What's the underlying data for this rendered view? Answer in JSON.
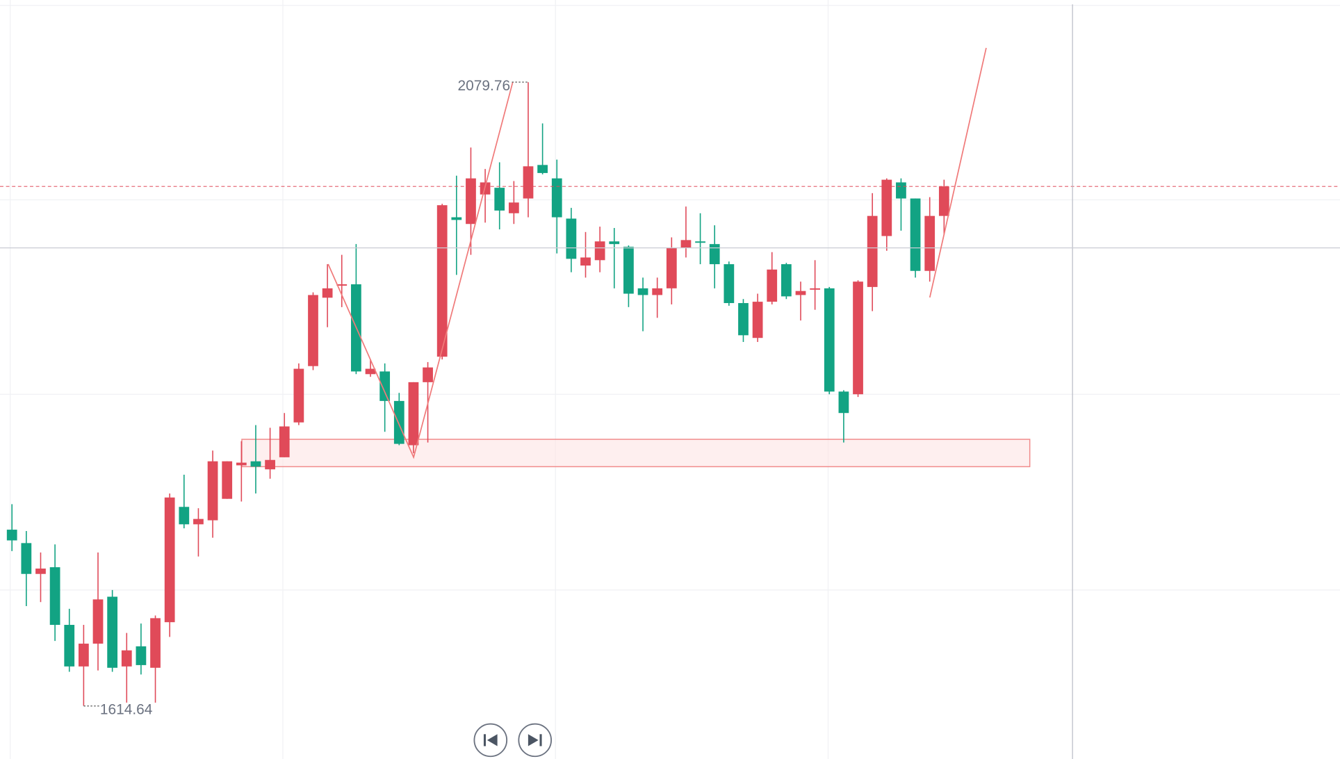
{
  "chart_data": {
    "type": "candlestick",
    "open": [
      1746,
      1736,
      1713,
      1718,
      1675,
      1644,
      1661,
      1696,
      1644,
      1659,
      1643,
      1677,
      1763,
      1750,
      1753,
      1769,
      1794,
      1797,
      1791,
      1800,
      1826,
      1868,
      1919,
      1928,
      1929,
      1862,
      1864,
      1842,
      1809,
      1856,
      1875,
      1979,
      1974,
      1996,
      2001,
      1982,
      1993,
      2018,
      2008,
      1978,
      1943,
      1947,
      1961,
      1957,
      1926,
      1921,
      1926,
      1956,
      1961,
      1959,
      1944,
      1915,
      1889,
      1916,
      1944,
      1921,
      1925,
      1926,
      1849,
      1847,
      1927,
      1965,
      2005,
      1993,
      1939,
      1980
    ],
    "high": [
      1765,
      1745,
      1729,
      1735,
      1687,
      1675,
      1729,
      1701,
      1669,
      1676,
      1682,
      1773,
      1787,
      1762,
      1805,
      1797,
      1812,
      1824,
      1822,
      1833,
      1870,
      1923,
      1944,
      1951,
      1959,
      1873,
      1870,
      1848,
      1856,
      1871,
      1989,
      2010,
      2031,
      2015,
      2020,
      2006,
      2079.76,
      2049,
      2022,
      1986,
      1968,
      1972,
      1971,
      1958,
      1934,
      1934,
      1964,
      1987,
      1982,
      1973,
      1946,
      1918,
      1922,
      1953,
      1945,
      1931,
      1947,
      1927,
      1850,
      1932,
      1997,
      2008,
      2008,
      1993,
      1994,
      2007
    ],
    "low": [
      1730,
      1689,
      1692,
      1663,
      1640,
      1614.64,
      1641,
      1640,
      1617,
      1638,
      1617,
      1666,
      1747,
      1726,
      1740,
      1769,
      1767,
      1773,
      1784,
      1800,
      1824,
      1865,
      1897,
      1912,
      1862,
      1860,
      1819,
      1809,
      1803,
      1811,
      1873,
      1936,
      1951,
      1975,
      1970,
      1974,
      1979,
      2011,
      1952,
      1938,
      1934,
      1938,
      1926,
      1912,
      1894,
      1904,
      1914,
      1949,
      1944,
      1926,
      1913,
      1886,
      1886,
      1914,
      1918,
      1902,
      1910,
      1847,
      1811,
      1845,
      1909,
      1954,
      1969,
      1934,
      1931,
      1966
    ],
    "close": [
      1738,
      1713,
      1717,
      1675,
      1644,
      1661,
      1694,
      1643,
      1656,
      1645,
      1680,
      1770,
      1750,
      1754,
      1797,
      1797,
      1796,
      1793,
      1798,
      1823,
      1866,
      1921,
      1926,
      1929,
      1864,
      1866,
      1842,
      1810,
      1856,
      1867,
      1988,
      1977,
      2008,
      2005,
      1984,
      1990,
      2017,
      2012,
      1979,
      1948,
      1949,
      1961,
      1959,
      1922,
      1921,
      1926,
      1956,
      1962,
      1960,
      1944,
      1915,
      1891,
      1916,
      1940,
      1920,
      1924,
      1926,
      1849,
      1833,
      1931,
      1980,
      2007,
      1993,
      1939,
      1980,
      2002
    ],
    "up_color": "#e04a59",
    "down_color": "#12a383",
    "ylim": [
      1575,
      2141
    ],
    "yticks": [
      2137,
      1992,
      1847,
      1701
    ],
    "grid": true
  }
}
